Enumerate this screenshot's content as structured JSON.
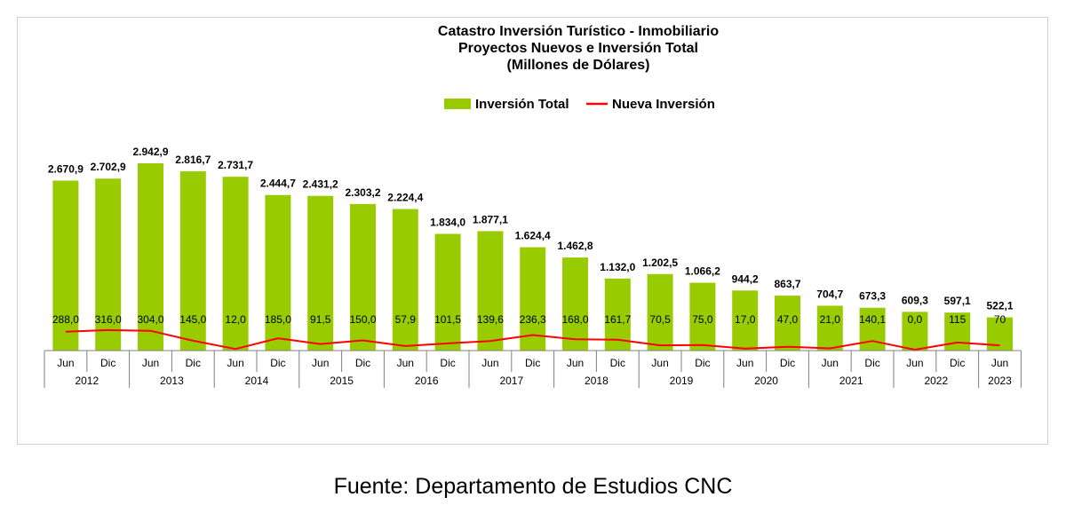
{
  "chart_data": {
    "type": "bar",
    "title_lines": [
      "Catastro Inversión Turístico - Inmobiliario",
      "Proyectos Nuevos e Inversión Total",
      "(Millones de Dólares)"
    ],
    "categories": [
      "Jun",
      "Dic",
      "Jun",
      "Dic",
      "Jun",
      "Dic",
      "Jun",
      "Dic",
      "Jun",
      "Dic",
      "Jun",
      "Dic",
      "Jun",
      "Dic",
      "Jun",
      "Dic",
      "Jun",
      "Dic",
      "Jun",
      "Dic",
      "Jun",
      "Dic",
      "Jun"
    ],
    "years": [
      "2012",
      "2013",
      "2014",
      "2015",
      "2016",
      "2017",
      "2018",
      "2019",
      "2020",
      "2021",
      "2022",
      "2023"
    ],
    "series": [
      {
        "name": "Inversión Total",
        "type": "bar",
        "color": "#99cc00",
        "values": [
          2670.9,
          2702.9,
          2942.9,
          2816.7,
          2731.7,
          2444.7,
          2431.2,
          2303.2,
          2224.4,
          1834.0,
          1877.1,
          1624.4,
          1462.8,
          1132.0,
          1202.5,
          1066.2,
          944.2,
          863.7,
          704.7,
          673.3,
          609.3,
          597.1,
          522.1
        ],
        "labels": [
          "2.670,9",
          "2.702,9",
          "2.942,9",
          "2.816,7",
          "2.731,7",
          "2.444,7",
          "2.431,2",
          "2.303,2",
          "2.224,4",
          "1.834,0",
          "1.877,1",
          "1.624,4",
          "1.462,8",
          "1.132,0",
          "1.202,5",
          "1.066,2",
          "944,2",
          "863,7",
          "704,7",
          "673,3",
          "609,3",
          "597,1",
          "522,1"
        ]
      },
      {
        "name": "Nueva Inversión",
        "type": "line",
        "color": "#ff0000",
        "values": [
          288.0,
          316.0,
          304.0,
          145.0,
          12.0,
          185.0,
          91.5,
          150.0,
          57.9,
          101.5,
          139.6,
          236.3,
          168.0,
          161.7,
          70.5,
          75.0,
          17.0,
          47.0,
          21.0,
          140.1,
          0.0,
          115,
          70
        ],
        "labels": [
          "288,0",
          "316,0",
          "304,0",
          "145,0",
          "12,0",
          "185,0",
          "91,5",
          "150,0",
          "57,9",
          "101,5",
          "139,6",
          "236,3",
          "168,0",
          "161,7",
          "70,5",
          "75,0",
          "17,0",
          "47,0",
          "21,0",
          "140,1",
          "0,0",
          "115",
          "70"
        ]
      }
    ],
    "legend_position": "top-center",
    "grid": false
  },
  "source": "Fuente: Departamento de Estudios CNC"
}
